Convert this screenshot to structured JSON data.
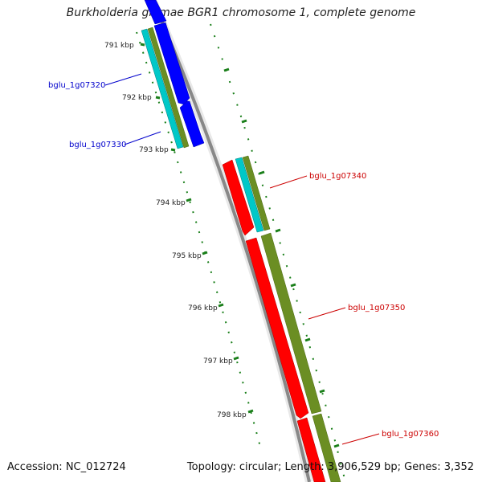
{
  "title": "Burkholderia glumae BGR1 chromosome 1, complete genome",
  "footer": {
    "accession": "Accession: NC_012724",
    "summary": "Topology: circular; Length: 3,906,529 bp; Genes: 3,352"
  },
  "ticks": [
    "791 kbp",
    "792 kbp",
    "793 kbp",
    "794 kbp",
    "795 kbp",
    "796 kbp",
    "797 kbp",
    "798 kbp"
  ],
  "genes": [
    {
      "label": "bglu_1g07320",
      "color": "#0000cc"
    },
    {
      "label": "bglu_1g07330",
      "color": "#0000cc"
    },
    {
      "label": "bglu_1g07340",
      "color": "#cc0000"
    },
    {
      "label": "bglu_1g07350",
      "color": "#cc0000"
    },
    {
      "label": "bglu_1g07360",
      "color": "#cc0000"
    }
  ],
  "colors": {
    "forward_cds": "#0000ff",
    "reverse_cds": "#ff0000",
    "gene": "#6b8e23",
    "rna_alt": "#00c8c8",
    "backbone": "#888888",
    "ticks": "#1a7f1a"
  }
}
